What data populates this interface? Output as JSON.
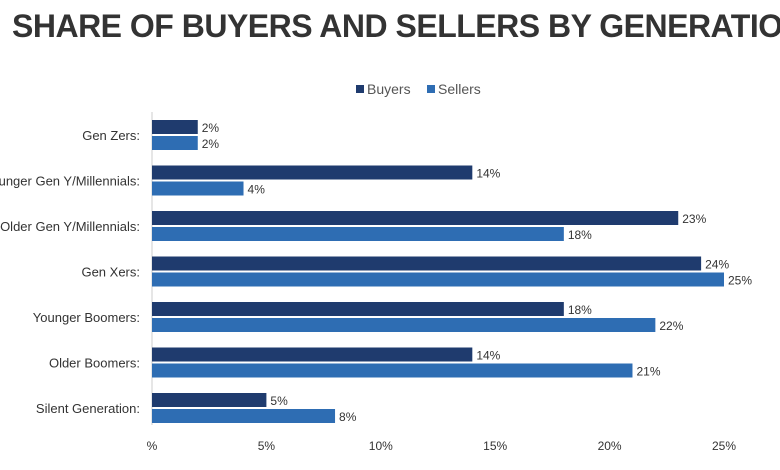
{
  "colors": {
    "buyers": "#1f3b6e",
    "sellers": "#2e6db3",
    "text": "#333333",
    "axis": "#cccccc",
    "background": "#ffffff"
  },
  "chart_data": {
    "type": "bar",
    "orientation": "horizontal",
    "title": "SHARE OF BUYERS AND SELLERS BY GENERATION",
    "xlabel": "",
    "ylabel": "",
    "categories": [
      "Gen Zers:",
      "Younger Gen Y/Millennials:",
      "Older Gen Y/Millennials:",
      "Gen Xers:",
      "Younger Boomers:",
      "Older Boomers:",
      "Silent Generation:"
    ],
    "series": [
      {
        "name": "Buyers",
        "color": "#1f3b6e",
        "values": [
          2,
          14,
          23,
          24,
          18,
          14,
          5
        ],
        "labels": [
          "2%",
          "14%",
          "23%",
          "24%",
          "18%",
          "14%",
          "5%"
        ]
      },
      {
        "name": "Sellers",
        "color": "#2e6db3",
        "values": [
          2,
          4,
          18,
          25,
          22,
          21,
          8
        ],
        "labels": [
          "2%",
          "4%",
          "18%",
          "25%",
          "22%",
          "21%",
          "8%"
        ]
      }
    ],
    "xlim": [
      0,
      25
    ],
    "xticks": [
      0,
      5,
      10,
      15,
      20,
      25
    ],
    "xtick_labels": [
      "%",
      "5%",
      "10%",
      "15%",
      "20%",
      "25%"
    ],
    "grid": false,
    "legend_position": "top-center"
  }
}
